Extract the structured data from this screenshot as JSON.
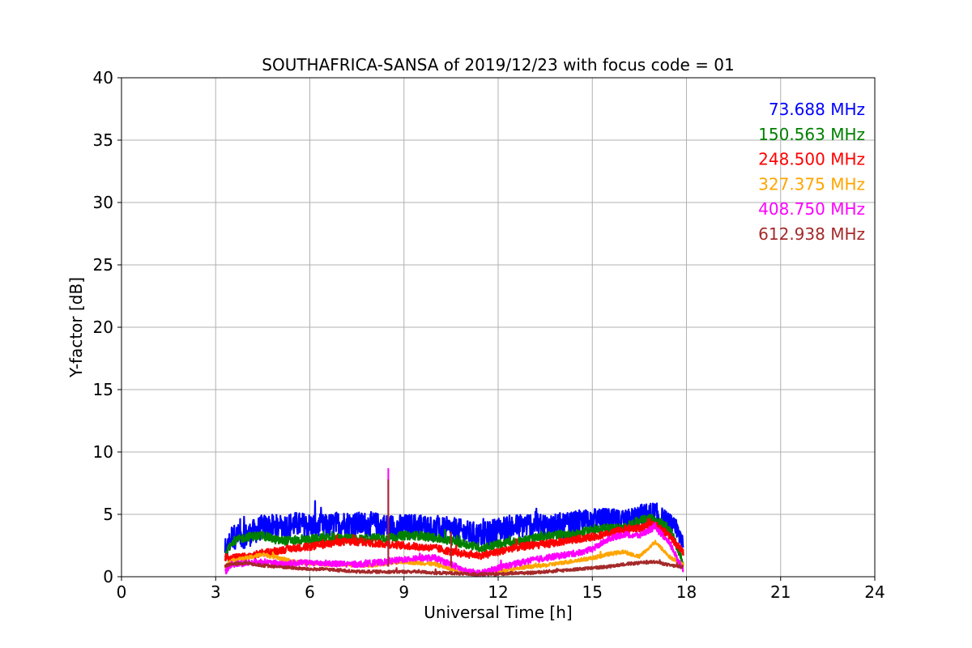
{
  "chart_data": {
    "type": "line",
    "title": "SOUTHAFRICA-SANSA of 2019/12/23 with focus code = 01",
    "xlabel": "Universal Time [h]",
    "ylabel": "Y-factor [dB]",
    "xlim": [
      0,
      24
    ],
    "ylim": [
      0,
      40
    ],
    "xticks": [
      "0",
      "3",
      "6",
      "9",
      "12",
      "15",
      "18",
      "21",
      "24"
    ],
    "yticks": [
      "0",
      "5",
      "10",
      "15",
      "20",
      "25",
      "30",
      "35",
      "40"
    ],
    "grid": true,
    "legend_placement": "top-right",
    "series": [
      {
        "name": "73.688 MHz",
        "color": "#0000ff",
        "noise": 1.0,
        "x": [
          3.3,
          3.5,
          4.0,
          4.5,
          5.0,
          5.5,
          6.0,
          6.5,
          7.0,
          7.5,
          8.0,
          8.5,
          9.0,
          9.5,
          10.0,
          10.5,
          11.0,
          11.5,
          12.0,
          12.5,
          13.0,
          13.5,
          14.0,
          14.5,
          15.0,
          15.5,
          16.0,
          16.5,
          17.0,
          17.5,
          17.9
        ],
        "y": [
          1.6,
          3.2,
          3.3,
          4.0,
          4.0,
          4.2,
          4.1,
          4.0,
          4.3,
          4.2,
          4.2,
          4.0,
          4.0,
          4.1,
          3.8,
          3.8,
          3.5,
          3.3,
          3.8,
          4.0,
          4.2,
          4.1,
          4.0,
          4.3,
          4.5,
          4.5,
          4.3,
          4.8,
          5.0,
          4.0,
          3.0
        ]
      },
      {
        "name": "150.563 MHz",
        "color": "#008000",
        "noise": 0.35,
        "x": [
          3.3,
          3.5,
          4.0,
          4.5,
          5.0,
          5.5,
          6.0,
          6.5,
          7.0,
          7.5,
          8.0,
          8.5,
          9.0,
          9.5,
          10.0,
          10.5,
          11.0,
          11.5,
          12.0,
          12.5,
          13.0,
          13.5,
          14.0,
          14.5,
          15.0,
          15.5,
          16.0,
          16.5,
          17.0,
          17.5,
          17.9
        ],
        "y": [
          1.5,
          2.8,
          3.2,
          3.3,
          2.9,
          2.9,
          3.0,
          3.1,
          3.1,
          3.0,
          3.1,
          3.1,
          3.3,
          3.3,
          3.1,
          2.9,
          2.6,
          2.3,
          2.6,
          2.8,
          3.0,
          3.2,
          3.4,
          3.4,
          3.8,
          3.9,
          3.9,
          4.5,
          4.7,
          3.7,
          1.0
        ]
      },
      {
        "name": "248.500 MHz",
        "color": "#ff0000",
        "noise": 0.3,
        "x": [
          3.3,
          3.5,
          4.0,
          4.5,
          5.0,
          5.5,
          6.0,
          6.5,
          7.0,
          7.5,
          8.0,
          8.5,
          9.0,
          9.5,
          10.0,
          10.5,
          11.0,
          11.5,
          12.0,
          12.5,
          13.0,
          13.5,
          14.0,
          14.5,
          15.0,
          15.5,
          16.0,
          16.5,
          17.0,
          17.5,
          17.9
        ],
        "y": [
          1.6,
          1.5,
          1.6,
          1.9,
          2.1,
          2.3,
          2.4,
          2.6,
          2.8,
          2.8,
          2.7,
          2.6,
          2.5,
          2.4,
          2.3,
          2.0,
          1.8,
          1.7,
          2.0,
          2.3,
          2.5,
          2.6,
          2.8,
          3.0,
          3.2,
          3.4,
          3.8,
          3.9,
          4.2,
          3.2,
          1.9
        ]
      },
      {
        "name": "327.375 MHz",
        "color": "#ffa500",
        "noise": 0.15,
        "x": [
          3.3,
          3.5,
          4.0,
          4.5,
          5.0,
          5.5,
          6.0,
          6.5,
          7.0,
          7.5,
          8.0,
          8.5,
          9.0,
          9.5,
          10.0,
          10.5,
          11.0,
          11.5,
          12.0,
          12.5,
          13.0,
          13.5,
          14.0,
          14.5,
          15.0,
          15.5,
          16.0,
          16.5,
          17.0,
          17.5,
          17.9
        ],
        "y": [
          0.8,
          1.3,
          1.5,
          1.8,
          1.5,
          1.2,
          1.1,
          1.0,
          1.0,
          0.9,
          0.9,
          1.1,
          1.2,
          1.1,
          1.0,
          0.6,
          0.3,
          0.3,
          0.4,
          0.6,
          0.8,
          0.9,
          1.1,
          1.3,
          1.5,
          1.8,
          2.0,
          1.6,
          2.8,
          1.5,
          1.0
        ]
      },
      {
        "name": "408.750 MHz",
        "color": "#ff00ff",
        "noise": 0.25,
        "x": [
          3.3,
          3.5,
          4.0,
          4.5,
          5.0,
          5.5,
          6.0,
          6.5,
          7.0,
          7.5,
          8.0,
          8.5,
          9.0,
          9.5,
          10.0,
          10.5,
          11.0,
          11.5,
          12.0,
          12.5,
          13.0,
          13.5,
          14.0,
          14.5,
          15.0,
          15.5,
          16.0,
          16.5,
          17.0,
          17.5,
          17.9
        ],
        "y": [
          0.3,
          1.0,
          1.1,
          1.2,
          1.0,
          1.1,
          1.1,
          1.1,
          1.0,
          1.0,
          1.1,
          1.2,
          1.4,
          1.5,
          1.5,
          1.0,
          0.4,
          0.3,
          0.7,
          1.0,
          1.3,
          1.5,
          1.7,
          1.9,
          2.2,
          3.0,
          3.4,
          3.3,
          4.0,
          2.5,
          0.5
        ]
      },
      {
        "name": "612.938 MHz",
        "color": "#a52a2a",
        "noise": 0.12,
        "x": [
          3.3,
          3.5,
          4.0,
          4.5,
          5.0,
          5.5,
          6.0,
          6.5,
          7.0,
          7.5,
          8.0,
          8.5,
          9.0,
          9.5,
          10.0,
          10.5,
          11.0,
          11.5,
          12.0,
          12.5,
          13.0,
          13.5,
          14.0,
          14.5,
          15.0,
          15.5,
          16.0,
          16.5,
          17.0,
          17.5,
          17.9
        ],
        "y": [
          0.9,
          1.0,
          1.1,
          0.9,
          0.8,
          0.7,
          0.6,
          0.6,
          0.5,
          0.4,
          0.4,
          0.4,
          0.4,
          0.4,
          0.3,
          0.3,
          0.2,
          0.2,
          0.2,
          0.3,
          0.3,
          0.4,
          0.5,
          0.6,
          0.7,
          0.8,
          1.0,
          1.1,
          1.2,
          0.9,
          0.8
        ]
      }
    ],
    "spikes": [
      {
        "x": 8.5,
        "y": 8.7,
        "color": "#ff00ff"
      },
      {
        "x": 8.5,
        "y": 7.8,
        "color": "#a52a2a"
      },
      {
        "x": 10.5,
        "y": 3.6,
        "color": "#a52a2a"
      }
    ]
  }
}
